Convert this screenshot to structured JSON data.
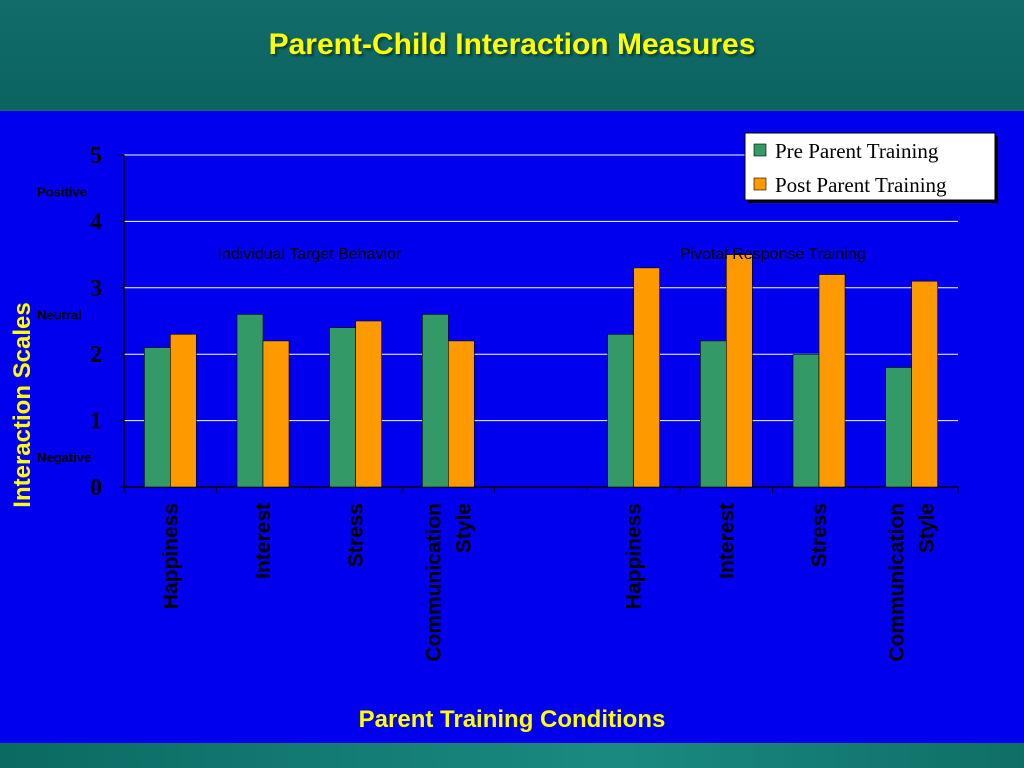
{
  "slide": {
    "title": "Parent-Child Interaction Measures",
    "footer": "Parent Training Conditions"
  },
  "colors": {
    "panel": "#0000ee",
    "pre": "#339966",
    "post": "#ff9900",
    "title_text": "#ffff00"
  },
  "chart_data": {
    "type": "bar",
    "ylabel": "Interaction Scales",
    "xlabel": "Parent Training Conditions",
    "ylim": [
      0,
      5
    ],
    "yticks": [
      0,
      1,
      2,
      3,
      4,
      5
    ],
    "grid": true,
    "legend_position": "top-right",
    "scale_labels": [
      {
        "text": "Positive",
        "value": 4.45
      },
      {
        "text": "Neutral",
        "value": 2.6
      },
      {
        "text": "Negative",
        "value": 0.45
      }
    ],
    "group_labels": [
      {
        "text": "Individual Target Behavior",
        "slot": 1.5
      },
      {
        "text": "Pivotal Response Training",
        "slot": 6.5
      }
    ],
    "categories": [
      [
        "Happiness"
      ],
      [
        "Interest"
      ],
      [
        "Stress"
      ],
      [
        "Communication",
        "Style"
      ],
      [],
      [
        "Happiness"
      ],
      [
        "Interest"
      ],
      [
        "Stress"
      ],
      [
        "Communication",
        "Style"
      ]
    ],
    "series": [
      {
        "name": "Pre Parent Training",
        "values": [
          2.1,
          2.6,
          2.4,
          2.6,
          null,
          2.3,
          2.2,
          2.0,
          1.8
        ]
      },
      {
        "name": "Post Parent Training",
        "values": [
          2.3,
          2.2,
          2.5,
          2.2,
          null,
          3.3,
          3.5,
          3.2,
          3.1
        ]
      }
    ]
  }
}
